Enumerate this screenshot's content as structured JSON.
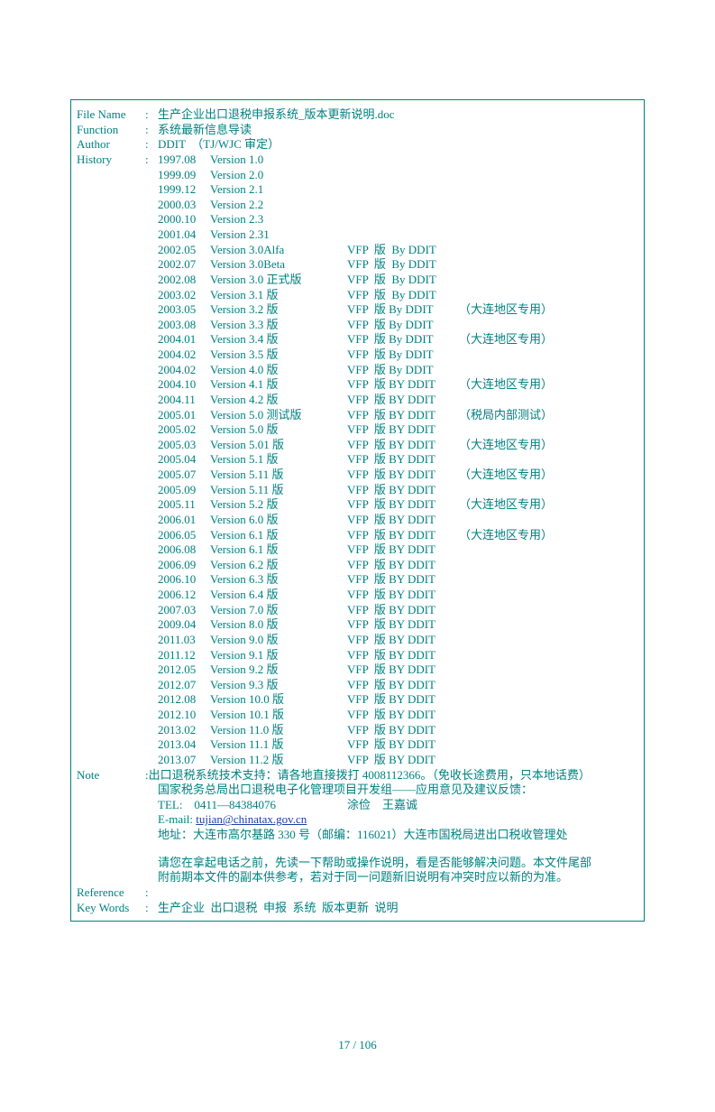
{
  "colors": {
    "text": "#008080",
    "border": "#008080",
    "link": "#1a3fa6",
    "background": "#ffffff"
  },
  "header": {
    "filename_label": "File Name",
    "filename_value": "生产企业出口退税申报系统_版本更新说明.doc",
    "function_label": "Function",
    "function_value": "系统最新信息导读",
    "author_label": "Author",
    "author_value": "DDIT  （TJ/WJC 审定）",
    "history_label": "History"
  },
  "history": [
    {
      "date": "1997.08",
      "version": "Version 1.0",
      "platform": "",
      "note": ""
    },
    {
      "date": "1999.09",
      "version": "Version 2.0",
      "platform": "",
      "note": ""
    },
    {
      "date": "1999.12",
      "version": "Version 2.1",
      "platform": "",
      "note": ""
    },
    {
      "date": "2000.03",
      "version": "Version 2.2",
      "platform": "",
      "note": ""
    },
    {
      "date": "2000.10",
      "version": "Version 2.3",
      "platform": "",
      "note": ""
    },
    {
      "date": "2001.04",
      "version": "Version 2.31",
      "platform": "",
      "note": ""
    },
    {
      "date": "2002.05",
      "version": "Version 3.0Alfa",
      "platform": "VFP  版  By DDIT",
      "note": ""
    },
    {
      "date": "2002.07",
      "version": "Version 3.0Beta",
      "platform": "VFP  版  By DDIT",
      "note": ""
    },
    {
      "date": "2002.08",
      "version": "Version 3.0 正式版",
      "platform": "VFP  版  By DDIT",
      "note": ""
    },
    {
      "date": "2003.02",
      "version": "Version 3.1 版",
      "platform": "VFP  版  By DDIT",
      "note": ""
    },
    {
      "date": "2003.05",
      "version": "Version 3.2 版",
      "platform": "VFP  版 By DDIT",
      "note": "（大连地区专用）"
    },
    {
      "date": "2003.08",
      "version": "Version 3.3 版",
      "platform": "VFP  版 By DDIT",
      "note": ""
    },
    {
      "date": "2004.01",
      "version": "Version 3.4 版",
      "platform": "VFP  版 By DDIT",
      "note": "（大连地区专用）"
    },
    {
      "date": "2004.02",
      "version": "Version 3.5 版",
      "platform": "VFP  版 By DDIT",
      "note": ""
    },
    {
      "date": "2004.02",
      "version": "Version 4.0 版",
      "platform": "VFP  版 By DDIT",
      "note": ""
    },
    {
      "date": "2004.10",
      "version": "Version 4.1 版",
      "platform": "VFP  版 BY DDIT",
      "note": "（大连地区专用）"
    },
    {
      "date": "2004.11",
      "version": "Version 4.2 版",
      "platform": "VFP  版 BY DDIT",
      "note": ""
    },
    {
      "date": "2005.01",
      "version": "Version 5.0 测试版",
      "platform": "VFP  版 BY DDIT",
      "note": "（税局内部测试）"
    },
    {
      "date": "2005.02",
      "version": "Version 5.0 版",
      "platform": "VFP  版 BY DDIT",
      "note": ""
    },
    {
      "date": "2005.03",
      "version": "Version 5.01 版",
      "platform": "VFP  版 BY DDIT",
      "note": "（大连地区专用）"
    },
    {
      "date": "2005.04",
      "version": "Version 5.1 版",
      "platform": "VFP  版 BY DDIT",
      "note": ""
    },
    {
      "date": "2005.07",
      "version": "Version 5.11 版",
      "platform": "VFP  版 BY DDIT",
      "note": "（大连地区专用）"
    },
    {
      "date": "2005.09",
      "version": "Version 5.11 版",
      "platform": "VFP  版 BY DDIT",
      "note": ""
    },
    {
      "date": "2005.11",
      "version": "Version 5.2 版",
      "platform": "VFP  版 BY DDIT",
      "note": "（大连地区专用）"
    },
    {
      "date": "2006.01",
      "version": "Version 6.0 版",
      "platform": "VFP  版 BY DDIT",
      "note": ""
    },
    {
      "date": "2006.05",
      "version": "Version 6.1 版",
      "platform": "VFP  版 BY DDIT",
      "note": "（大连地区专用）"
    },
    {
      "date": "2006.08",
      "version": "Version 6.1 版",
      "platform": "VFP  版 BY DDIT",
      "note": ""
    },
    {
      "date": "2006.09",
      "version": "Version 6.2 版",
      "platform": "VFP  版 BY DDIT",
      "note": ""
    },
    {
      "date": "2006.10",
      "version": "Version 6.3 版",
      "platform": "VFP  版 BY DDIT",
      "note": ""
    },
    {
      "date": "2006.12",
      "version": "Version 6.4 版",
      "platform": "VFP  版 BY DDIT",
      "note": ""
    },
    {
      "date": "2007.03",
      "version": "Version 7.0 版",
      "platform": "VFP  版 BY DDIT",
      "note": ""
    },
    {
      "date": "2009.04",
      "version": "Version 8.0 版",
      "platform": "VFP  版 BY DDIT",
      "note": ""
    },
    {
      "date": "2011.03",
      "version": "Version 9.0 版",
      "platform": "VFP  版 BY DDIT",
      "note": ""
    },
    {
      "date": "2011.12",
      "version": "Version 9.1 版",
      "platform": "VFP  版 BY DDIT",
      "note": ""
    },
    {
      "date": "2012.05",
      "version": "Version 9.2 版",
      "platform": "VFP  版 BY DDIT",
      "note": ""
    },
    {
      "date": "2012.07",
      "version": "Version 9.3 版",
      "platform": "VFP  版 BY DDIT",
      "note": ""
    },
    {
      "date": "2012.08",
      "version": "Version 10.0 版",
      "platform": "VFP  版 BY DDIT",
      "note": ""
    },
    {
      "date": "2012.10",
      "version": "Version 10.1 版",
      "platform": "VFP  版 BY DDIT",
      "note": ""
    },
    {
      "date": "2013.02",
      "version": "Version 11.0 版",
      "platform": "VFP  版 BY DDIT",
      "note": ""
    },
    {
      "date": "2013.04",
      "version": "Version 11.1 版",
      "platform": "VFP  版 BY DDIT",
      "note": ""
    },
    {
      "date": "2013.07",
      "version": "Version 11.2 版",
      "platform": "VFP  版 BY DDIT",
      "note": ""
    }
  ],
  "note_label": "Note",
  "note_lines": {
    "l1": ":出口退税系统技术支持：请各地直接拨打 4008112366。（免收长途费用，只本地话费）",
    "l2": "国家税务总局出口退税电子化管理项目开发组——应用意见及建议反馈：",
    "l3a": "TEL:    0411—84384076",
    "l3b": "涂俭    王嘉诚",
    "l4a": "E-mail: ",
    "l4link": "tujian@chinatax.gov.cn",
    "l5": "地址：大连市高尔基路 330 号（邮编：116021）大连市国税局进出口税收管理处",
    "l6": "请您在拿起电话之前，先读一下帮助或操作说明，看是否能够解决问题。本文件尾部",
    "l7": "附前期本文件的副本供参考，若对于同一问题新旧说明有冲突时应以新的为准。"
  },
  "reference_label": "Reference",
  "keywords_label": "Key Words",
  "keywords_value": "生产企业  出口退税  申报  系统  版本更新  说明",
  "page_number": "17 / 106"
}
